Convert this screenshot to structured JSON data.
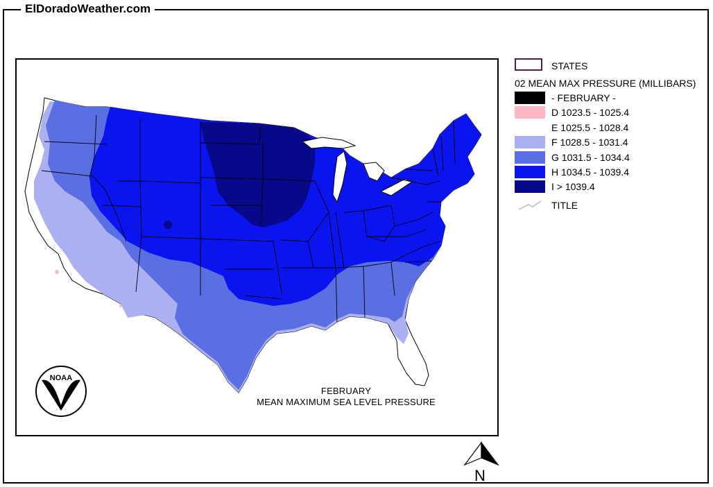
{
  "site": {
    "title": "ElDoradoWeather.com"
  },
  "map": {
    "caption_line1": "FEBRUARY",
    "caption_line2": "MEAN MAXIMUM SEA LEVEL PRESSURE",
    "logo": "noaa-logo",
    "logo_text": "NOAA",
    "north_label": "N"
  },
  "legend": {
    "states_label": "STATES",
    "states_border_color": "#5a1a4a",
    "heading": "02 MEAN MAX PRESSURE (MILLIBARS)",
    "classes": [
      {
        "label": "- FEBRUARY -",
        "color": "#000000"
      },
      {
        "label": "D 1023.5 - 1025.4",
        "color": "#ffb6c1"
      },
      {
        "label": "E 1025.5 - 1028.4",
        "color": "#ffffff"
      },
      {
        "label": "F 1028.5 - 1031.4",
        "color": "#aab0f2"
      },
      {
        "label": "G 1031.5 - 1034.4",
        "color": "#5a6fe2"
      },
      {
        "label": "H 1034.5 - 1039.4",
        "color": "#0a14ee"
      },
      {
        "label": "I > 1039.4",
        "color": "#08088a"
      }
    ],
    "title_label": "TITLE"
  }
}
